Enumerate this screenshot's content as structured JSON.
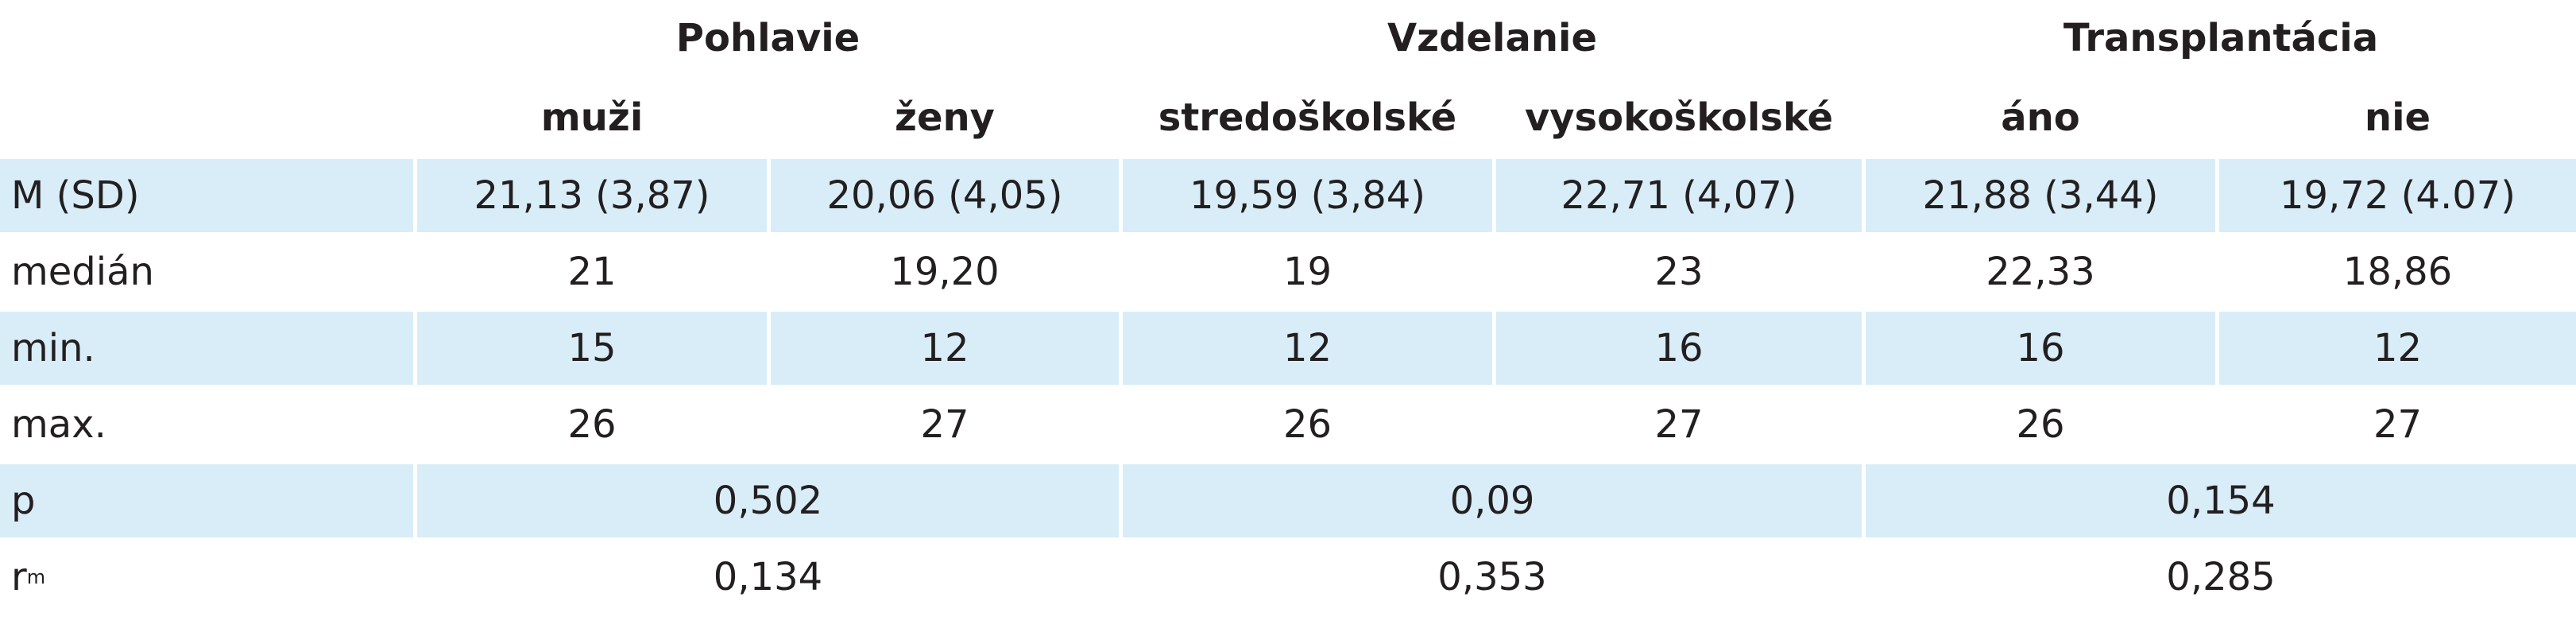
{
  "table": {
    "groups": [
      "Pohlavie",
      "Vzdelanie",
      "Transplantácia"
    ],
    "subheaders": [
      "muži",
      "ženy",
      "stredoškolské",
      "vysokoškolské",
      "áno",
      "nie"
    ],
    "rows": [
      {
        "label": "M (SD)",
        "cells": [
          "21,13 (3,87)",
          "20,06 (4,05)",
          "19,59 (3,84)",
          "22,71 (4,07)",
          "21,88 (3,44)",
          "19,72 (4.07)"
        ]
      },
      {
        "label": "medián",
        "cells": [
          "21",
          "19,20",
          "19",
          "23",
          "22,33",
          "18,86"
        ]
      },
      {
        "label": "min.",
        "cells": [
          "15",
          "12",
          "12",
          "16",
          "16",
          "12"
        ]
      },
      {
        "label": "max.",
        "cells": [
          "26",
          "27",
          "26",
          "27",
          "26",
          "27"
        ]
      },
      {
        "label": "p",
        "cells": [
          "0,502",
          "0,09",
          "0,154"
        ]
      },
      {
        "label": "r",
        "label_sub": "m",
        "cells": [
          "0,134",
          "0,353",
          "0,285"
        ]
      }
    ]
  }
}
